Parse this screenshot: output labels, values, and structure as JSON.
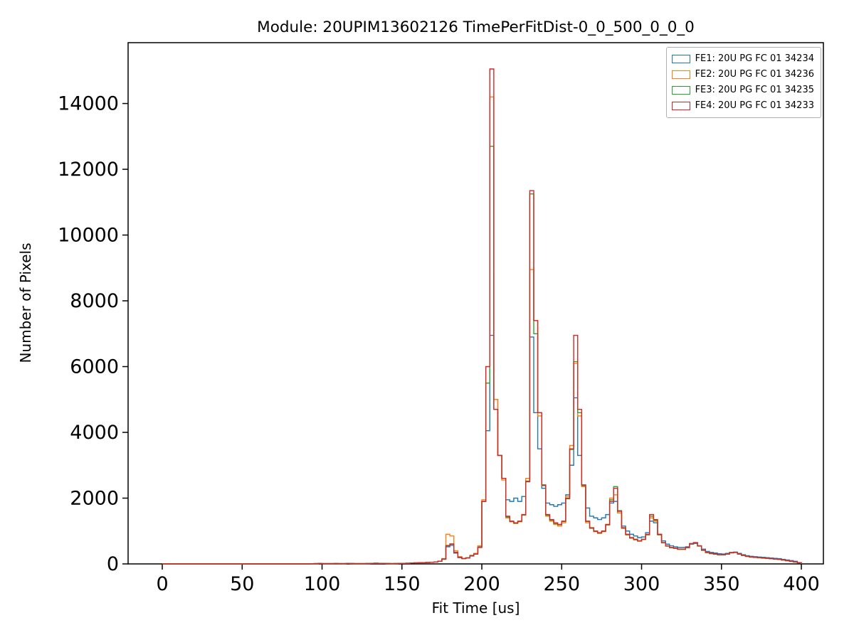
{
  "page": {
    "background": "#ffffff"
  },
  "chart_data": {
    "type": "histogram-step",
    "title": "Module: 20UPIM13602126 TimePerFitDist-0_0_500_0_0_0",
    "xlabel": "Fit Time [us]",
    "ylabel": "Number of Pixels",
    "xlim": [
      -21.4,
      413.8
    ],
    "ylim": [
      0,
      15850
    ],
    "xticks": [
      0,
      50,
      100,
      150,
      200,
      250,
      300,
      350,
      400
    ],
    "yticks": [
      0,
      2000,
      4000,
      6000,
      8000,
      10000,
      12000,
      14000
    ],
    "grid": false,
    "legend_position": "upper right",
    "bins": {
      "baseline_from": 0,
      "start": 90,
      "width": 2.5,
      "count": 124
    },
    "series": [
      {
        "name": "FE1: 20U PG FC 01 34234",
        "color": "#1f77b4",
        "values": [
          0,
          5,
          8,
          12,
          10,
          8,
          10,
          12,
          8,
          10,
          15,
          12,
          10,
          8,
          10,
          12,
          15,
          20,
          18,
          15,
          12,
          10,
          12,
          15,
          18,
          20,
          25,
          30,
          35,
          40,
          45,
          50,
          60,
          80,
          140,
          520,
          560,
          330,
          190,
          160,
          180,
          240,
          300,
          520,
          1900,
          4050,
          6950,
          5000,
          3300,
          2600,
          1950,
          1900,
          2000,
          1900,
          2050,
          2500,
          6900,
          4600,
          3500,
          2300,
          1850,
          1800,
          1750,
          1800,
          1850,
          2100,
          3000,
          5050,
          3300,
          2400,
          1700,
          1450,
          1400,
          1350,
          1400,
          1500,
          1850,
          1900,
          1550,
          1150,
          1000,
          900,
          850,
          800,
          820,
          950,
          1300,
          1250,
          900,
          700,
          600,
          550,
          520,
          500,
          500,
          520,
          600,
          620,
          550,
          450,
          380,
          350,
          330,
          310,
          300,
          320,
          350,
          360,
          320,
          280,
          250,
          230,
          220,
          210,
          200,
          190,
          180,
          170,
          160,
          140,
          120,
          100,
          80,
          40
        ]
      },
      {
        "name": "FE2: 20U PG FC 01 34236",
        "color": "#ff7f0e",
        "values": [
          0,
          5,
          8,
          15,
          10,
          8,
          10,
          12,
          8,
          10,
          15,
          12,
          10,
          8,
          10,
          12,
          15,
          20,
          18,
          15,
          12,
          10,
          12,
          15,
          18,
          20,
          25,
          30,
          35,
          40,
          45,
          50,
          60,
          85,
          160,
          900,
          850,
          400,
          220,
          170,
          190,
          260,
          320,
          550,
          1950,
          6000,
          14200,
          5000,
          3300,
          2550,
          1400,
          1280,
          1230,
          1280,
          1480,
          2600,
          8950,
          7400,
          4500,
          2400,
          1450,
          1300,
          1200,
          1150,
          1250,
          2050,
          3600,
          6100,
          4500,
          2350,
          1250,
          1080,
          980,
          930,
          980,
          1180,
          2000,
          2100,
          1550,
          1080,
          880,
          780,
          730,
          690,
          740,
          880,
          1400,
          1300,
          880,
          640,
          540,
          490,
          470,
          440,
          440,
          490,
          610,
          640,
          540,
          410,
          340,
          310,
          295,
          275,
          275,
          295,
          335,
          345,
          295,
          255,
          225,
          205,
          195,
          185,
          175,
          165,
          155,
          145,
          135,
          115,
          95,
          75,
          55,
          25
        ]
      },
      {
        "name": "FE3: 20U PG FC 01 34235",
        "color": "#2ca02c",
        "values": [
          0,
          5,
          8,
          15,
          10,
          8,
          10,
          12,
          8,
          10,
          15,
          12,
          10,
          8,
          10,
          12,
          15,
          20,
          18,
          15,
          12,
          10,
          12,
          15,
          18,
          20,
          25,
          30,
          35,
          40,
          45,
          50,
          60,
          80,
          150,
          560,
          610,
          355,
          205,
          165,
          185,
          255,
          305,
          510,
          1900,
          5500,
          12700,
          4700,
          3300,
          2600,
          1430,
          1290,
          1240,
          1290,
          1490,
          2520,
          11250,
          7000,
          4600,
          2380,
          1480,
          1330,
          1230,
          1190,
          1290,
          1980,
          3480,
          6150,
          4600,
          2380,
          1290,
          1090,
          990,
          940,
          990,
          1190,
          1950,
          2350,
          1620,
          1090,
          890,
          790,
          745,
          695,
          745,
          890,
          1450,
          1330,
          890,
          645,
          545,
          495,
          475,
          445,
          445,
          495,
          615,
          645,
          545,
          415,
          345,
          315,
          298,
          278,
          278,
          298,
          338,
          348,
          298,
          258,
          228,
          208,
          198,
          188,
          178,
          168,
          158,
          148,
          138,
          118,
          98,
          78,
          58,
          28
        ]
      },
      {
        "name": "FE4: 20U PG FC 01 34233",
        "color": "#d62728",
        "values": [
          0,
          5,
          8,
          15,
          10,
          8,
          10,
          12,
          8,
          10,
          15,
          12,
          10,
          8,
          10,
          12,
          15,
          20,
          18,
          15,
          12,
          10,
          12,
          15,
          18,
          20,
          25,
          30,
          35,
          40,
          45,
          50,
          60,
          80,
          150,
          550,
          600,
          350,
          200,
          160,
          180,
          250,
          300,
          500,
          1900,
          6000,
          15050,
          4700,
          3300,
          2600,
          1450,
          1300,
          1250,
          1300,
          1500,
          2500,
          11350,
          7400,
          4600,
          2400,
          1500,
          1350,
          1250,
          1200,
          1300,
          2000,
          3500,
          6950,
          4700,
          2400,
          1300,
          1100,
          1000,
          950,
          1000,
          1200,
          1900,
          2300,
          1600,
          1100,
          900,
          800,
          750,
          700,
          750,
          900,
          1500,
          1350,
          900,
          650,
          550,
          500,
          480,
          450,
          450,
          500,
          620,
          650,
          550,
          420,
          350,
          320,
          300,
          280,
          280,
          300,
          340,
          350,
          300,
          260,
          230,
          210,
          200,
          190,
          180,
          170,
          160,
          150,
          140,
          120,
          100,
          80,
          60,
          30
        ]
      }
    ]
  }
}
